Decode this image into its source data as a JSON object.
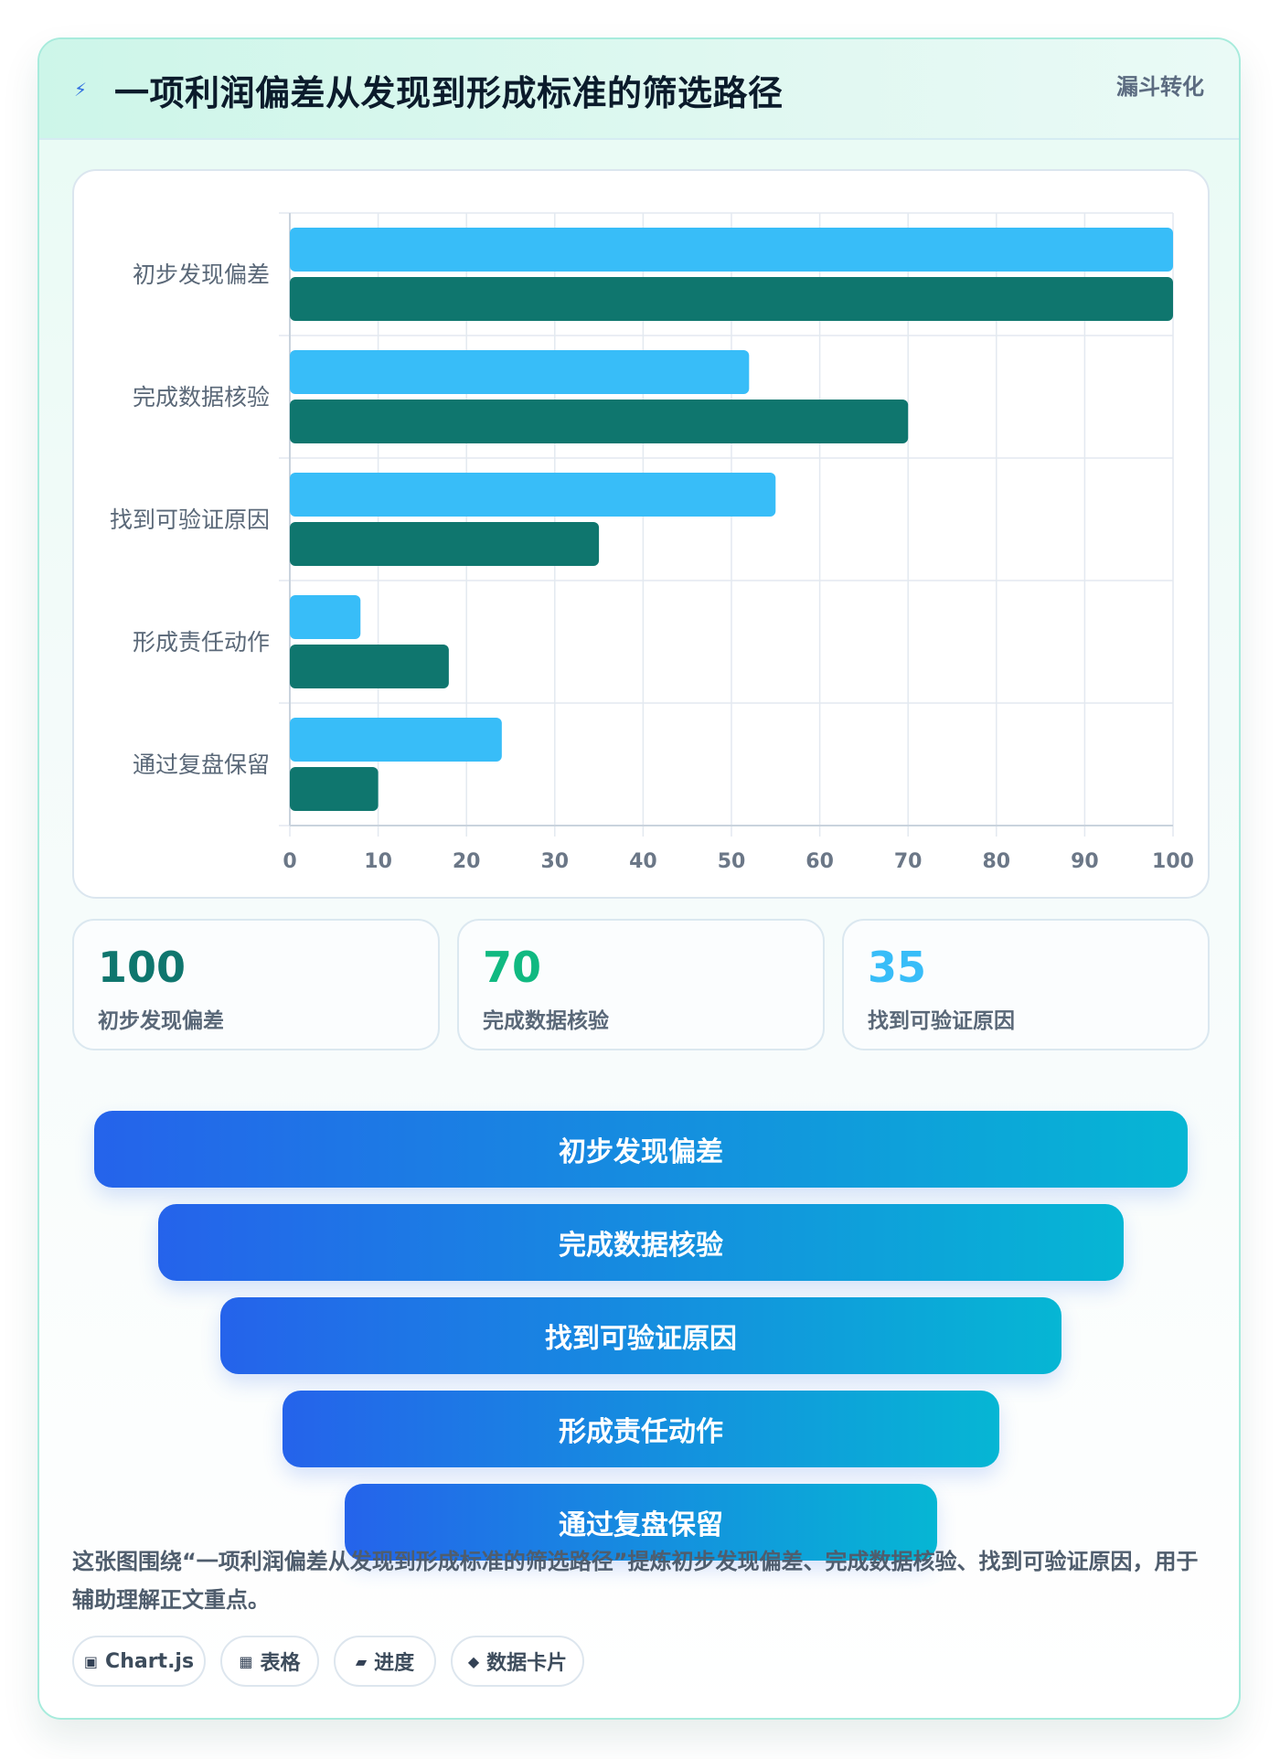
{
  "header": {
    "title": "一项利润偏差从发现到形成标准的筛选路径",
    "tag": "漏斗转化",
    "icon": "lightning-icon"
  },
  "chart_data": {
    "type": "bar",
    "orientation": "horizontal",
    "categories": [
      "初步发现偏差",
      "完成数据核验",
      "找到可验证原因",
      "形成责任动作",
      "通过复盘保留"
    ],
    "series": [
      {
        "values": [
          100,
          52,
          55,
          8,
          24
        ],
        "color": "#38bdf8"
      },
      {
        "values": [
          100,
          70,
          35,
          18,
          10
        ],
        "color": "#0f766e"
      }
    ],
    "xlim": [
      0,
      100
    ],
    "xticks": [
      "0",
      "10",
      "20",
      "30",
      "40",
      "50",
      "60",
      "70",
      "80",
      "90",
      "100"
    ],
    "grid": true,
    "legend": "none"
  },
  "kpis": [
    {
      "value": "100",
      "label": "初步发现偏差",
      "color": "#0f766e"
    },
    {
      "value": "70",
      "label": "完成数据核验",
      "color": "#10b981"
    },
    {
      "value": "35",
      "label": "找到可验证原因",
      "color": "#38bdf8"
    }
  ],
  "funnel": [
    "初步发现偏差",
    "完成数据核验",
    "找到可验证原因",
    "形成责任动作",
    "通过复盘保留"
  ],
  "description": "这张图围绕“一项利润偏差从发现到形成标准的筛选路径”提炼初步发现偏差、完成数据核验、找到可验证原因，用于辅助理解正文重点。",
  "chips": [
    {
      "icon": "chip-square-icon",
      "glyph": "▣",
      "label": "Chart.js"
    },
    {
      "icon": "table-icon",
      "glyph": "▦",
      "label": "表格"
    },
    {
      "icon": "progress-icon",
      "glyph": "▰",
      "label": "进度"
    },
    {
      "icon": "diamond-icon",
      "glyph": "◆",
      "label": "数据卡片"
    }
  ]
}
